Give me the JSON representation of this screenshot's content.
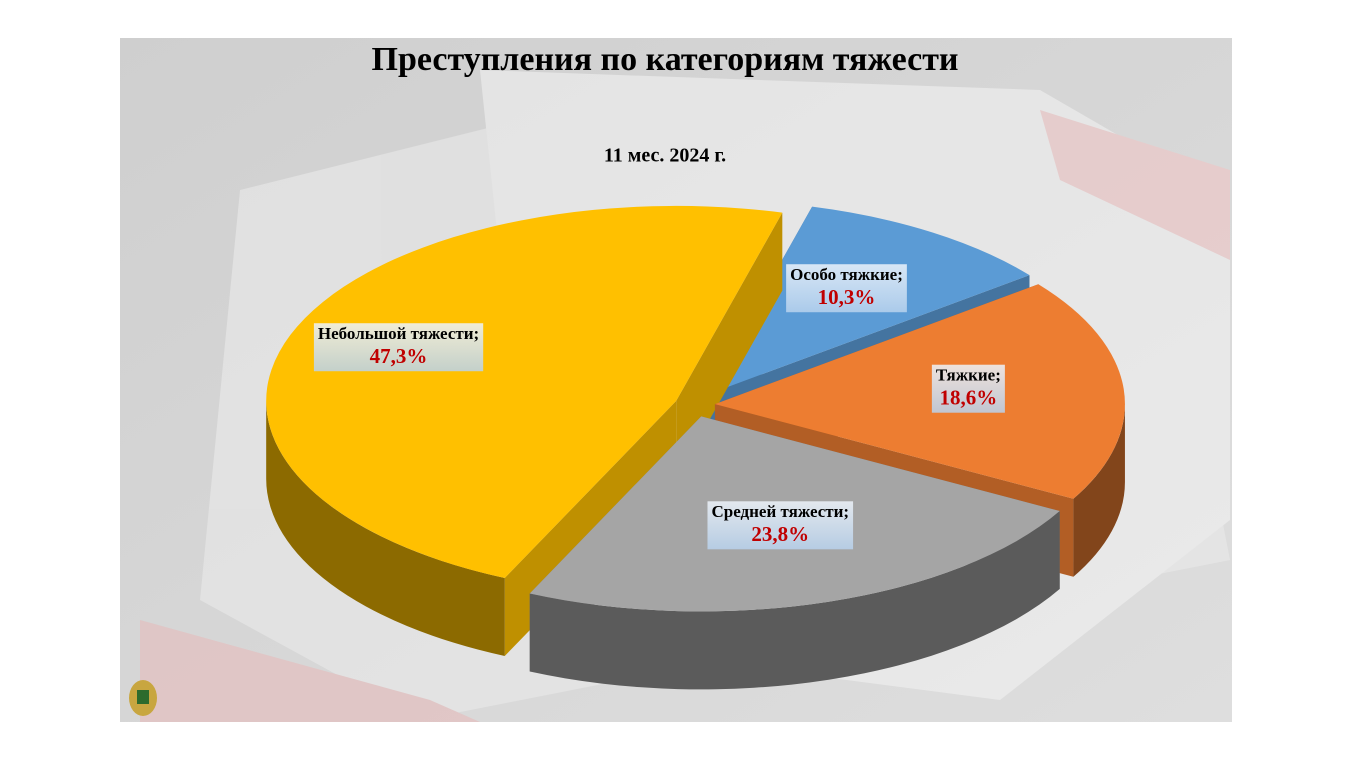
{
  "chart_data": {
    "type": "pie3d",
    "title": "Преступления по категориям тяжести",
    "subtitle": "11 мес. 2024 г.",
    "categories": [
      "Особо тяжкие;",
      "Тяжкие;",
      "Средней тяжести;",
      "Небольшой тяжести;"
    ],
    "values": [
      10.3,
      18.6,
      23.8,
      47.3
    ],
    "value_labels": [
      "10,3%",
      "18,6%",
      "23,8%",
      "47,3%"
    ],
    "colors": [
      "#5b9bd5",
      "#ed7d31",
      "#a5a5a5",
      "#ffc000"
    ]
  }
}
